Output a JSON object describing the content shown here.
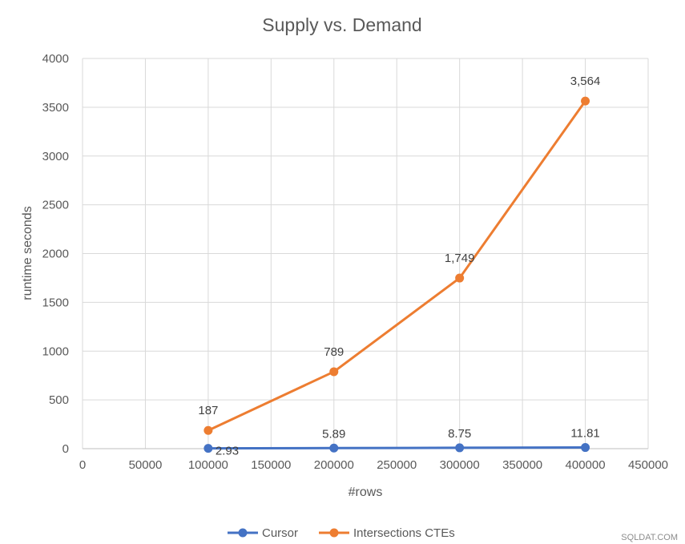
{
  "chart_data": {
    "type": "scatter",
    "title": "Supply vs. Demand",
    "xlabel": "#rows",
    "ylabel": "runtime seconds",
    "xlim": [
      0,
      450000
    ],
    "ylim": [
      0,
      4000
    ],
    "x_ticks": [
      0,
      50000,
      100000,
      150000,
      200000,
      250000,
      300000,
      350000,
      400000,
      450000
    ],
    "y_ticks": [
      0,
      500,
      1000,
      1500,
      2000,
      2500,
      3000,
      3500,
      4000
    ],
    "x_tick_labels": [
      "0",
      "50000",
      "100000",
      "150000",
      "200000",
      "250000",
      "300000",
      "350000",
      "400000",
      "450000"
    ],
    "y_tick_labels": [
      "0",
      "500",
      "1000",
      "1500",
      "2000",
      "2500",
      "3000",
      "3500",
      "4000"
    ],
    "grid": true,
    "legend_position": "bottom",
    "series": [
      {
        "name": "Cursor",
        "color": "#4472c4",
        "x": [
          100000,
          200000,
          300000,
          400000
        ],
        "y": [
          2.93,
          5.89,
          8.75,
          11.81
        ],
        "labels": [
          "2.93",
          "5.89",
          "8.75",
          "11.81"
        ]
      },
      {
        "name": "Intersections CTEs",
        "color": "#ed7d31",
        "x": [
          100000,
          200000,
          300000,
          400000
        ],
        "y": [
          187,
          789,
          1749,
          3564
        ],
        "labels": [
          "187",
          "789",
          "1,749",
          "3,564"
        ]
      }
    ]
  },
  "watermark": "SQLDAT.COM"
}
